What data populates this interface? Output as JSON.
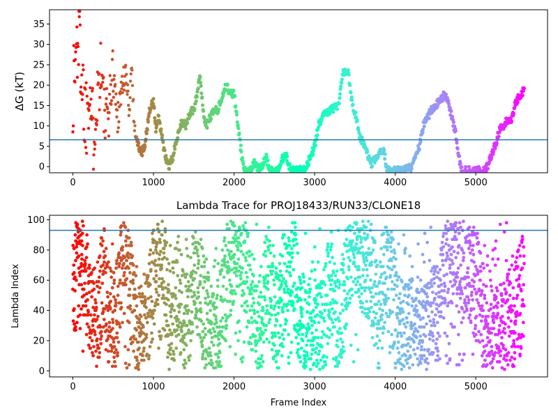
{
  "chart_data": [
    {
      "type": "scatter",
      "title": "",
      "xlabel": "",
      "ylabel": "ΔG (kT)",
      "xlim": [
        -290,
        5890
      ],
      "ylim": [
        -1.5,
        38.5
      ],
      "xticks": [
        0,
        1000,
        2000,
        3000,
        4000,
        5000
      ],
      "yticks": [
        0,
        5,
        10,
        15,
        20,
        25,
        30,
        35
      ],
      "colormap": "rainbow",
      "color_by": "frame index (red at 0, violet at end)",
      "hline": {
        "y": 6.6,
        "color": "#1f77b4"
      },
      "x_range": [
        0,
        5600
      ],
      "keypoints": [
        [
          0,
          18
        ],
        [
          40,
          28
        ],
        [
          80,
          35
        ],
        [
          120,
          20
        ],
        [
          160,
          12
        ],
        [
          200,
          22
        ],
        [
          250,
          8
        ],
        [
          300,
          18
        ],
        [
          350,
          25
        ],
        [
          400,
          10
        ],
        [
          450,
          15
        ],
        [
          500,
          24
        ],
        [
          550,
          12
        ],
        [
          600,
          19
        ],
        [
          650,
          23
        ],
        [
          700,
          14
        ],
        [
          730,
          26
        ],
        [
          760,
          10
        ],
        [
          800,
          6
        ],
        [
          850,
          3
        ],
        [
          900,
          6
        ],
        [
          950,
          14
        ],
        [
          1000,
          16
        ],
        [
          1030,
          9
        ],
        [
          1060,
          12
        ],
        [
          1100,
          8
        ],
        [
          1150,
          2
        ],
        [
          1200,
          0
        ],
        [
          1250,
          3
        ],
        [
          1300,
          8
        ],
        [
          1350,
          11
        ],
        [
          1400,
          10
        ],
        [
          1450,
          13
        ],
        [
          1500,
          14
        ],
        [
          1550,
          19
        ],
        [
          1580,
          22
        ],
        [
          1620,
          13
        ],
        [
          1660,
          10
        ],
        [
          1700,
          12
        ],
        [
          1750,
          14
        ],
        [
          1800,
          14
        ],
        [
          1850,
          17
        ],
        [
          1900,
          20
        ],
        [
          1950,
          18
        ],
        [
          2000,
          18
        ],
        [
          2060,
          8
        ],
        [
          2120,
          -1
        ],
        [
          2200,
          -1
        ],
        [
          2250,
          1
        ],
        [
          2300,
          -1
        ],
        [
          2400,
          2
        ],
        [
          2450,
          -1
        ],
        [
          2550,
          -1
        ],
        [
          2600,
          2
        ],
        [
          2650,
          2.5
        ],
        [
          2700,
          -1
        ],
        [
          2800,
          -1
        ],
        [
          2900,
          0
        ],
        [
          3000,
          5
        ],
        [
          3050,
          10
        ],
        [
          3100,
          13
        ],
        [
          3200,
          14
        ],
        [
          3300,
          15
        ],
        [
          3350,
          23
        ],
        [
          3420,
          23
        ],
        [
          3470,
          15
        ],
        [
          3520,
          12
        ],
        [
          3560,
          7
        ],
        [
          3600,
          6
        ],
        [
          3700,
          0.5
        ],
        [
          3800,
          3
        ],
        [
          3860,
          4
        ],
        [
          3900,
          -1
        ],
        [
          4000,
          -1
        ],
        [
          4100,
          -1
        ],
        [
          4200,
          0
        ],
        [
          4300,
          5
        ],
        [
          4350,
          10
        ],
        [
          4400,
          12
        ],
        [
          4450,
          14
        ],
        [
          4500,
          15
        ],
        [
          4550,
          16
        ],
        [
          4620,
          18
        ],
        [
          4680,
          14
        ],
        [
          4750,
          8
        ],
        [
          4820,
          -1
        ],
        [
          4950,
          -1
        ],
        [
          5050,
          -1
        ],
        [
          5120,
          -1
        ],
        [
          5180,
          2
        ],
        [
          5250,
          6
        ],
        [
          5300,
          9
        ],
        [
          5380,
          11
        ],
        [
          5450,
          12
        ],
        [
          5500,
          16
        ],
        [
          5600,
          19
        ]
      ]
    },
    {
      "type": "scatter",
      "title": "Lambda Trace for PROJ18433/RUN33/CLONE18",
      "xlabel": "Frame Index",
      "ylabel": "Lambda Index",
      "xlim": [
        -290,
        5890
      ],
      "ylim": [
        -4,
        103
      ],
      "xticks": [
        0,
        1000,
        2000,
        3000,
        4000,
        5000
      ],
      "yticks": [
        0,
        20,
        40,
        60,
        80,
        100
      ],
      "colormap": "rainbow",
      "color_by": "frame index (red at 0, violet at end)",
      "hline": {
        "y": 93,
        "color": "#1f77b4"
      },
      "x_range": [
        0,
        5600
      ],
      "keypoints": [
        [
          0,
          50
        ],
        [
          120,
          80
        ],
        [
          250,
          30
        ],
        [
          380,
          60
        ],
        [
          500,
          20
        ],
        [
          640,
          85
        ],
        [
          760,
          40
        ],
        [
          880,
          10
        ],
        [
          1000,
          60
        ],
        [
          1100,
          95
        ],
        [
          1200,
          30
        ],
        [
          1300,
          55
        ],
        [
          1400,
          20
        ],
        [
          1520,
          70
        ],
        [
          1620,
          40
        ],
        [
          1760,
          10
        ],
        [
          1900,
          60
        ],
        [
          2000,
          85
        ],
        [
          2080,
          95
        ],
        [
          2200,
          50
        ],
        [
          2300,
          20
        ],
        [
          2420,
          60
        ],
        [
          2550,
          30
        ],
        [
          2700,
          90
        ],
        [
          2800,
          40
        ],
        [
          2900,
          15
        ],
        [
          3000,
          45
        ],
        [
          3100,
          20
        ],
        [
          3200,
          60
        ],
        [
          3300,
          20
        ],
        [
          3450,
          90
        ],
        [
          3550,
          80
        ],
        [
          3700,
          60
        ],
        [
          3800,
          35
        ],
        [
          3900,
          80
        ],
        [
          4000,
          40
        ],
        [
          4100,
          20
        ],
        [
          4250,
          25
        ],
        [
          4400,
          20
        ],
        [
          4550,
          45
        ],
        [
          4650,
          70
        ],
        [
          4750,
          95
        ],
        [
          4850,
          75
        ],
        [
          4950,
          65
        ],
        [
          5050,
          50
        ],
        [
          5150,
          15
        ],
        [
          5300,
          20
        ],
        [
          5450,
          30
        ],
        [
          5600,
          55
        ]
      ]
    }
  ]
}
